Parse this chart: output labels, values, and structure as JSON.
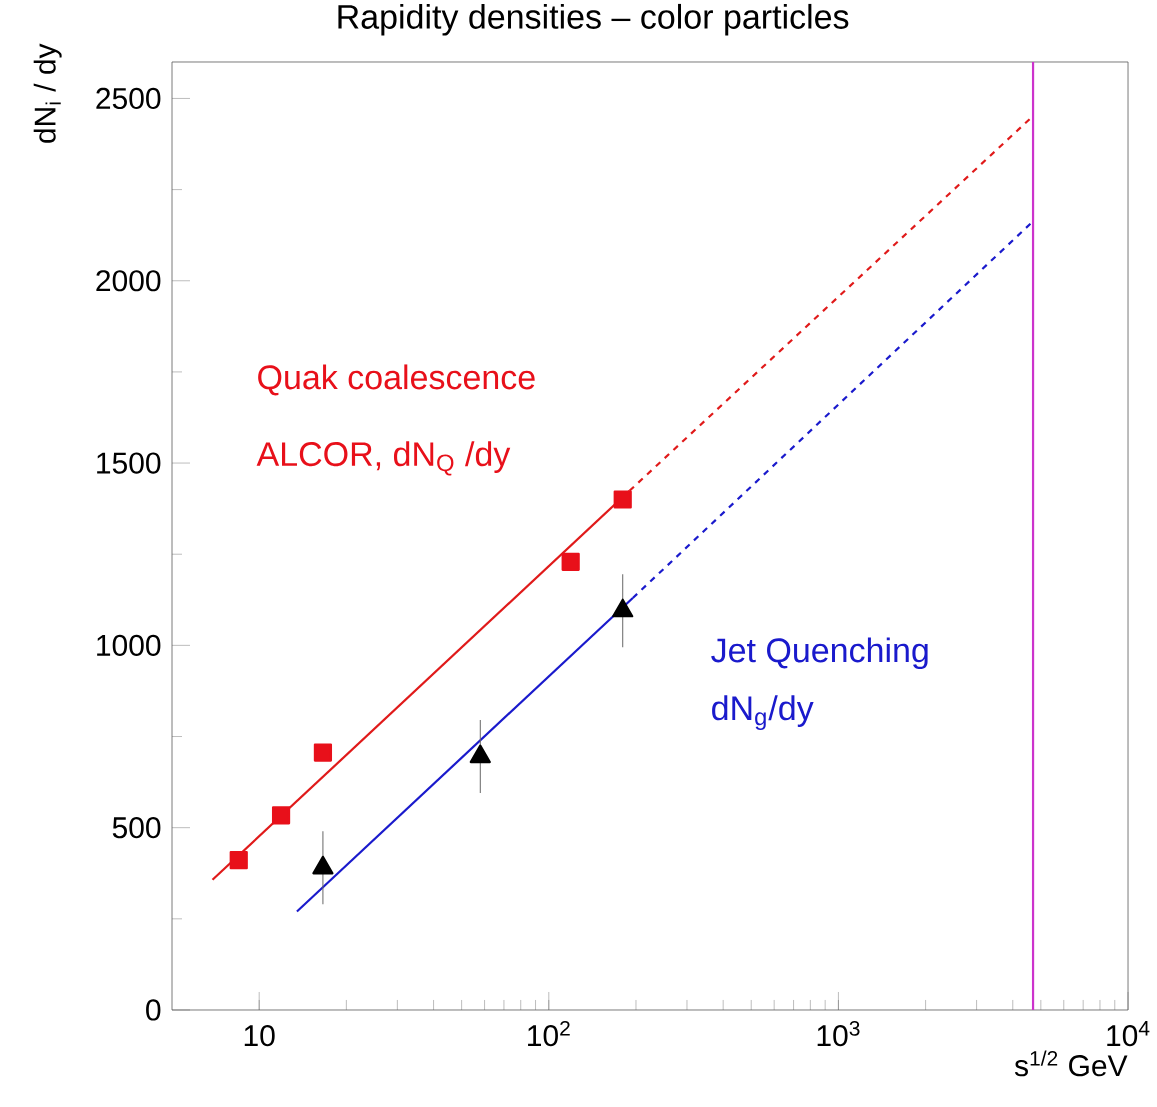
{
  "chart_data": {
    "type": "scatter",
    "title": "Rapidity densities – color particles",
    "xlabel": "s$^{1/2}$ GeV",
    "ylabel": "dN$_{i}$ / dy",
    "log": "x",
    "xlim": [
      5,
      10000
    ],
    "ylim": [
      0,
      2600
    ],
    "xticks": [
      10,
      {
        "value": 100,
        "label": "10$^{2}$"
      },
      {
        "value": 1000,
        "label": "10$^{3}$"
      },
      {
        "value": 10000,
        "label": "10$^{4}$"
      }
    ],
    "yticks": [
      0,
      {
        "value": 250,
        "label": null
      },
      500,
      {
        "value": 750,
        "label": null
      },
      1000,
      {
        "value": 1250,
        "label": null
      },
      1500,
      {
        "value": 1750,
        "label": null
      },
      2000,
      {
        "value": 2250,
        "label": null
      },
      2500
    ],
    "grid": false,
    "series": [
      {
        "type": "line",
        "color": "#e01a1a",
        "marker": "none",
        "line_style": "solid",
        "x": [
          6.9,
          190
        ],
        "values": [
          357,
          1424
        ]
      },
      {
        "type": "line",
        "color": "#e01a1a",
        "marker": "none",
        "line_style": "dashed",
        "x": [
          190,
          4700
        ],
        "values": [
          1424,
          2452
        ]
      },
      {
        "name": "Jet Quenching",
        "type": "line",
        "color": "#1a1acc",
        "marker": "none",
        "line_style": "solid",
        "x": [
          13.5,
          195
        ],
        "values": [
          270,
          1130
        ]
      },
      {
        "type": "line",
        "color": "#1a1acc",
        "marker": "none",
        "line_style": "dashed",
        "x": [
          195,
          4700
        ],
        "values": [
          1130,
          2163
        ]
      },
      {
        "name": "ALCOR, dN$_{Q}$ /dy",
        "color": "#e8101a",
        "marker": "square",
        "x": [
          8.5,
          11.9,
          16.6,
          119,
          180
        ],
        "values": [
          411,
          534,
          706,
          1229,
          1400
        ]
      },
      {
        "color": "#000000",
        "marker": "triangle",
        "x": [
          16.6,
          58,
          180
        ],
        "values": [
          390,
          695,
          1095
        ],
        "errors": [
          100,
          100,
          100
        ]
      }
    ],
    "ref_lines": [
      {
        "axis": "x",
        "value": 4700,
        "color": "#cc33cc",
        "line_style": "solid"
      }
    ],
    "annotations": [
      "Quak coalescence",
      "dN$_{g}$/dy"
    ]
  }
}
